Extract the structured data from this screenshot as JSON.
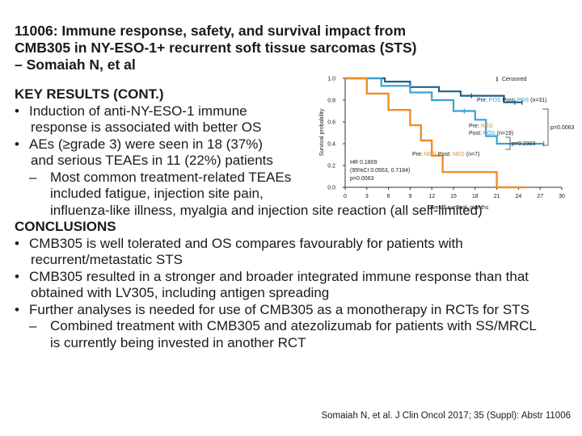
{
  "title": {
    "line1": "11006: Immune response, safety, and survival impact from",
    "line2": "CMB305 in NY-ESO-1+ recurrent soft tissue sarcomas (STS)",
    "line3": "– Somaiah N, et al"
  },
  "key_results": {
    "heading": "KEY RESULTS (CONT.)",
    "bullet": "•",
    "dash": "–",
    "b1_l1": "Induction of anti-NY-ESO-1 immune",
    "b1_l2": "response is associated with better OS",
    "b2_l1": "AEs (≥grade 3) were seen in 18 (37%)",
    "b2_l2": "and serious TEAEs in 11 (22%) patients",
    "s1_l1": "Most common treatment-related TEAEs",
    "s1_l2": "included fatigue, injection site pain,",
    "s1_l3": "influenza-like illness, myalgia and injection site reaction (all self-limited)"
  },
  "conclusions": {
    "heading": "CONCLUSIONS",
    "c1_l1": "CMB305 is well tolerated and OS compares favourably for patients with",
    "c1_l2": "recurrent/metastatic STS",
    "c2_l1": "CMB305 resulted in a stronger and broader integrated immune response than that",
    "c2_l2": "obtained with LV305, including antigen spreading",
    "c3_l1": "Further analyses is needed for use of CMB305 as a monotherapy in RCTs for STS",
    "s1_l1": "Combined treatment with CMB305 and atezolizumab for patients with SS/MRCL",
    "s1_l2": "is currently being invested in another RCT"
  },
  "footer": "Somaiah N, et al. J Clin Oncol 2017; 35 (Suppl): Abstr 11006",
  "chart_data": {
    "type": "line",
    "xlabel": "Overall survival, months",
    "ylabel": "Survival probability",
    "xlim": [
      0,
      30
    ],
    "ylim": [
      0,
      1.0
    ],
    "xticks": [
      "0",
      "3",
      "6",
      "9",
      "12",
      "15",
      "18",
      "21",
      "24",
      "27",
      "30"
    ],
    "yticks": [
      "0.0",
      "0.2",
      "0.4",
      "0.6",
      "0.8",
      "1.0"
    ],
    "legend": {
      "label": "Censored"
    },
    "colors": {
      "pos_pos": "#1f5f8b",
      "pos_neg": "#3aa0d8",
      "neg_neg": "#f28c28",
      "pos_word": "#3aa0d8",
      "neg_word": "#f28c28",
      "axis": "#333333"
    },
    "series": [
      {
        "name": "Pre: POS Post: POS (n=31)",
        "x": [
          0,
          5.5,
          5.5,
          9,
          9,
          13,
          13,
          16,
          16,
          22,
          22,
          24.5
        ],
        "y": [
          1.0,
          1.0,
          0.97,
          0.97,
          0.92,
          0.92,
          0.88,
          0.88,
          0.84,
          0.84,
          0.78,
          0.78
        ]
      },
      {
        "name": "Pre: NEG Post: POS (n=19)",
        "x": [
          0,
          5,
          5,
          9,
          9,
          12,
          12,
          15,
          15,
          18,
          18,
          19.5,
          19.5,
          21,
          21,
          27.5
        ],
        "y": [
          1.0,
          1.0,
          0.93,
          0.93,
          0.87,
          0.87,
          0.8,
          0.8,
          0.7,
          0.7,
          0.62,
          0.62,
          0.47,
          0.47,
          0.4,
          0.4
        ]
      },
      {
        "name": "Pre: NEG Post: NEG (n=7)",
        "x": [
          0,
          3,
          3,
          6,
          6,
          9,
          9,
          10.5,
          10.5,
          12,
          12,
          13.5,
          13.5,
          21,
          21,
          25
        ],
        "y": [
          1.0,
          1.0,
          0.86,
          0.86,
          0.71,
          0.71,
          0.57,
          0.57,
          0.43,
          0.43,
          0.29,
          0.29,
          0.14,
          0.14,
          0.0,
          0.0
        ]
      }
    ],
    "censor_marks": [
      {
        "x": 17.5,
        "y": 0.84,
        "series": 0
      },
      {
        "x": 23.5,
        "y": 0.78,
        "series": 0
      },
      {
        "x": 24.5,
        "y": 0.78,
        "series": 0
      },
      {
        "x": 16.5,
        "y": 0.7,
        "series": 1
      },
      {
        "x": 27.5,
        "y": 0.4,
        "series": 1
      }
    ],
    "annotations": {
      "pos_pre": "Pre:",
      "pos_pre_val": "POS",
      "pos_post": "Post:",
      "pos_post_val": "POS",
      "pos_n": "(n=31)",
      "mid_pre": "Pre:",
      "mid_pre_val": "NEG",
      "mid_post": "Post:",
      "mid_post_val": "POS",
      "mid_n": "(n=19)",
      "neg_pre": "Pre:",
      "neg_pre_val": "NEG",
      "neg_post": "Post:",
      "neg_post_val": "NEG",
      "neg_n": "(n=7)",
      "p_outer": "p=0.0063",
      "p_inner": "p=0.2303",
      "hr_l1": "HR 0.1809",
      "hr_l2": "(95%CI 0.0553, 0.7184)",
      "hr_l3": "p=0.0063"
    }
  }
}
